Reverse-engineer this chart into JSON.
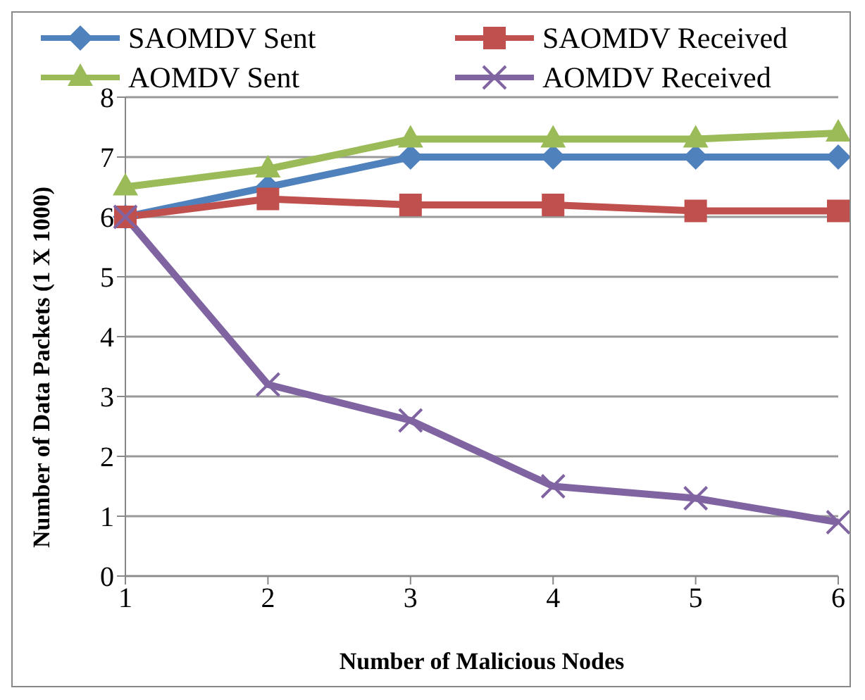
{
  "chart_data": {
    "type": "line",
    "xlabel": "Number of Malicious Nodes",
    "ylabel": "Number of Data Packets (1 X 1000)",
    "categories": [
      "1",
      "2",
      "3",
      "4",
      "5",
      "6"
    ],
    "series": [
      {
        "name": "SAOMDV Sent",
        "color": "#4f81bd",
        "marker": "diamond",
        "values": [
          6,
          6.5,
          7,
          7,
          7,
          7
        ]
      },
      {
        "name": "SAOMDV Received",
        "color": "#c0504d",
        "marker": "square",
        "values": [
          6,
          6.3,
          6.2,
          6.2,
          6.1,
          6.1
        ]
      },
      {
        "name": "AOMDV Sent",
        "color": "#9bbb59",
        "marker": "triangle",
        "values": [
          6.5,
          6.8,
          7.3,
          7.3,
          7.3,
          7.4
        ]
      },
      {
        "name": "AOMDV Received",
        "color": "#8064a2",
        "marker": "cross",
        "values": [
          6,
          3.2,
          2.6,
          1.5,
          1.3,
          0.9
        ]
      }
    ],
    "ylim": [
      0,
      8
    ],
    "yticks": [
      0,
      1,
      2,
      3,
      4,
      5,
      6,
      7,
      8
    ],
    "grid": "y",
    "legend": "top",
    "line_style": "solid"
  }
}
